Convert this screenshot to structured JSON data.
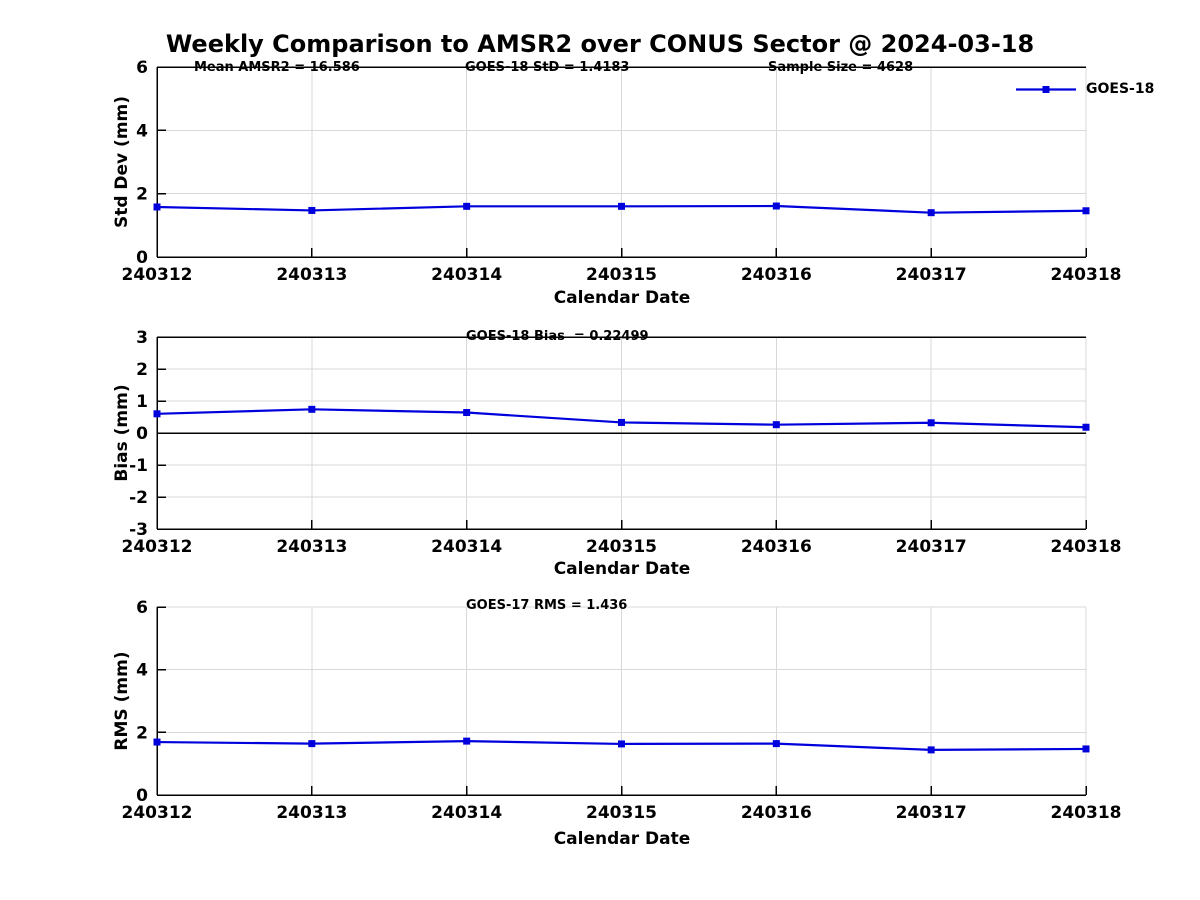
{
  "figure": {
    "title": "Weekly Comparison to AMSR2 over CONUS Sector @ 2024-03-18"
  },
  "colors": {
    "line": "#0000dd",
    "grid": "#d8d8d8",
    "axis": "#000000",
    "text": "#000000"
  },
  "chart_data": [
    {
      "type": "line",
      "categories": [
        "240312",
        "240313",
        "240314",
        "240315",
        "240316",
        "240317",
        "240318"
      ],
      "series": [
        {
          "name": "GOES-18",
          "values": [
            1.58,
            1.47,
            1.6,
            1.6,
            1.61,
            1.4,
            1.46
          ]
        }
      ],
      "ylabel": "Std Dev (mm)",
      "xlabel": "Calendar Date",
      "ylim": [
        0,
        6
      ],
      "yticks": [
        0,
        2,
        4,
        6
      ],
      "zero_line": false,
      "grid": true,
      "legend_position": "top-right",
      "annotations": [
        "Mean AMSR2 = 16.586",
        "GOES-18 StD = 1.4183",
        "Sample Size = 4628"
      ]
    },
    {
      "type": "line",
      "categories": [
        "240312",
        "240313",
        "240314",
        "240315",
        "240316",
        "240317",
        "240318"
      ],
      "series": [
        {
          "name": "GOES-18",
          "values": [
            0.6,
            0.74,
            0.64,
            0.33,
            0.26,
            0.32,
            0.18
          ]
        }
      ],
      "ylabel": "Bias (mm)",
      "xlabel": "Calendar Date",
      "ylim": [
        -3,
        3
      ],
      "yticks": [
        3,
        2,
        1,
        0,
        -1,
        -2,
        -3
      ],
      "zero_line": true,
      "grid": true,
      "annotations": [
        "GOES-18 Bias  = 0.22499"
      ]
    },
    {
      "type": "line",
      "categories": [
        "240312",
        "240313",
        "240314",
        "240315",
        "240316",
        "240317",
        "240318"
      ],
      "series": [
        {
          "name": "GOES-18",
          "values": [
            1.69,
            1.64,
            1.72,
            1.63,
            1.64,
            1.44,
            1.47
          ]
        }
      ],
      "ylabel": "RMS (mm)",
      "xlabel": "Calendar Date",
      "ylim": [
        0,
        6
      ],
      "yticks": [
        0,
        2,
        4,
        6
      ],
      "zero_line": false,
      "grid": true,
      "annotations": [
        "GOES-17 RMS = 1.436"
      ]
    }
  ]
}
